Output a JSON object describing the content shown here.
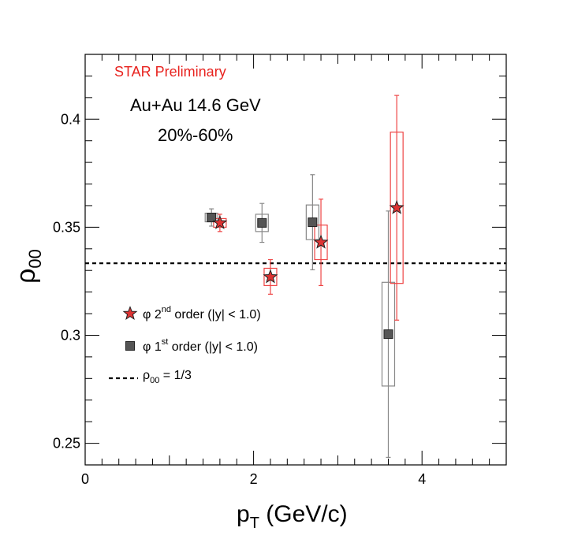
{
  "chart_data": {
    "type": "scatter",
    "title": "",
    "xlabel": {
      "base": "p",
      "sub": "T",
      "rest": " (GeV/c)"
    },
    "ylabel": {
      "base": "ρ",
      "sub": "00"
    },
    "xlim": [
      0,
      5
    ],
    "ylim": [
      0.24,
      0.43
    ],
    "x_ticks": [
      0,
      2,
      4
    ],
    "x_tick_labels": [
      "0",
      "2",
      "4"
    ],
    "y_ticks": [
      0.25,
      0.3,
      0.35,
      0.4
    ],
    "y_tick_labels": [
      "0.25",
      "0.3",
      "0.35",
      "0.4"
    ],
    "annotations": {
      "experiment": "STAR Preliminary",
      "system": "Au+Au 14.6 GeV",
      "centrality": "20%-60%"
    },
    "reference_line": {
      "y": 0.3333,
      "label_base": "ρ",
      "label_sub": "00",
      "label_rest": " = 1/3",
      "style": "dashed"
    },
    "series": [
      {
        "name": "phi-1st-order",
        "label_prefix": "φ 1",
        "label_sup": "st",
        "label_rest": " order (|y| < 1.0)",
        "marker": "square",
        "color": "#555555",
        "edge": "#222222",
        "syscolor": "#888888",
        "x": [
          1.5,
          2.1,
          2.7,
          3.6
        ],
        "y": [
          0.3545,
          0.352,
          0.3523,
          0.3005
        ],
        "stat_err": [
          0.004,
          0.009,
          0.022,
          0.057
        ],
        "sys_err": [
          0.002,
          0.004,
          0.008,
          0.024
        ]
      },
      {
        "name": "phi-2nd-order",
        "label_prefix": "φ 2",
        "label_sup": "nd",
        "label_rest": " order (|y| < 1.0)",
        "marker": "star",
        "color": "#dd3333",
        "edge": "#222222",
        "syscolor": "#ee4444",
        "x": [
          1.6,
          2.2,
          2.8,
          3.7
        ],
        "y": [
          0.352,
          0.327,
          0.343,
          0.359
        ],
        "stat_err": [
          0.004,
          0.008,
          0.02,
          0.052
        ],
        "sys_err": [
          0.002,
          0.004,
          0.008,
          0.035
        ]
      }
    ]
  }
}
